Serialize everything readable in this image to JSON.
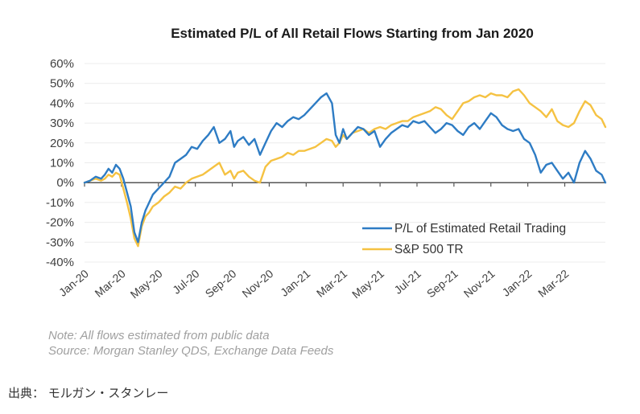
{
  "chart_data": {
    "type": "line",
    "title": "Estimated P/L of All Retail Flows Starting from Jan 2020",
    "xlabel": "",
    "ylabel": "",
    "ylim": [
      -40,
      60
    ],
    "yticks": [
      60,
      50,
      40,
      30,
      20,
      10,
      0,
      -10,
      -20,
      -30,
      -40
    ],
    "ytick_labels": [
      "60%",
      "50%",
      "40%",
      "30%",
      "20%",
      "10%",
      "0%",
      "-10%",
      "-20%",
      "-30%",
      "-40%"
    ],
    "xlim_months": [
      0,
      28.2
    ],
    "xtick_months": [
      0,
      2,
      4,
      6,
      8,
      10,
      12,
      14,
      16,
      18,
      20,
      22,
      24,
      26
    ],
    "xtick_labels": [
      "Jan-20",
      "Mar-20",
      "May-20",
      "Jul-20",
      "Sep-20",
      "Nov-20",
      "Jan-21",
      "Mar-21",
      "May-21",
      "Jul-21",
      "Sep-21",
      "Nov-21",
      "Jan-22",
      "Mar-22"
    ],
    "grid": true,
    "legend_position": "bottom-right",
    "x_unit": "months since Jan 2020",
    "series": [
      {
        "name": "P/L of Estimated Retail Trading",
        "color": "#2e7cc4",
        "x": [
          0,
          0.3,
          0.6,
          0.9,
          1.1,
          1.3,
          1.5,
          1.7,
          1.9,
          2.1,
          2.3,
          2.5,
          2.7,
          2.9,
          3.1,
          3.3,
          3.5,
          3.7,
          4.0,
          4.3,
          4.6,
          4.9,
          5.2,
          5.5,
          5.8,
          6.1,
          6.4,
          6.7,
          7.0,
          7.3,
          7.6,
          7.9,
          8.1,
          8.3,
          8.6,
          8.9,
          9.2,
          9.5,
          9.8,
          10.1,
          10.4,
          10.7,
          11.0,
          11.3,
          11.6,
          11.9,
          12.2,
          12.5,
          12.8,
          13.1,
          13.4,
          13.6,
          13.8,
          14.0,
          14.2,
          14.5,
          14.8,
          15.1,
          15.4,
          15.7,
          16.0,
          16.3,
          16.6,
          16.9,
          17.2,
          17.5,
          17.8,
          18.1,
          18.4,
          18.7,
          19.0,
          19.3,
          19.6,
          19.9,
          20.2,
          20.5,
          20.8,
          21.1,
          21.4,
          21.7,
          22.0,
          22.3,
          22.6,
          22.9,
          23.2,
          23.5,
          23.8,
          24.1,
          24.4,
          24.7,
          25.0,
          25.3,
          25.6,
          25.9,
          26.2,
          26.5,
          26.8,
          27.1,
          27.4,
          27.7,
          28.0,
          28.2
        ],
        "values": [
          0,
          1,
          3,
          2,
          4,
          7,
          5,
          9,
          7,
          2,
          -5,
          -12,
          -25,
          -30,
          -20,
          -14,
          -10,
          -6,
          -3,
          0,
          3,
          10,
          12,
          14,
          18,
          17,
          21,
          24,
          28,
          20,
          22,
          26,
          18,
          21,
          23,
          19,
          22,
          14,
          20,
          26,
          30,
          28,
          31,
          33,
          32,
          34,
          37,
          40,
          43,
          45,
          40,
          24,
          20,
          27,
          22,
          25,
          28,
          27,
          24,
          26,
          18,
          22,
          25,
          27,
          29,
          28,
          31,
          30,
          31,
          28,
          25,
          27,
          30,
          29,
          26,
          24,
          28,
          30,
          27,
          31,
          35,
          33,
          29,
          27,
          26,
          27,
          22,
          20,
          14,
          5,
          9,
          10,
          6,
          2,
          5,
          0,
          10,
          16,
          12,
          6,
          4,
          0
        ]
      },
      {
        "name": "S&P 500 TR",
        "color": "#f5c242",
        "x": [
          0,
          0.3,
          0.6,
          0.9,
          1.1,
          1.3,
          1.5,
          1.7,
          1.9,
          2.1,
          2.3,
          2.5,
          2.7,
          2.9,
          3.1,
          3.3,
          3.5,
          3.7,
          4.0,
          4.3,
          4.6,
          4.9,
          5.2,
          5.5,
          5.8,
          6.1,
          6.4,
          6.7,
          7.0,
          7.3,
          7.6,
          7.9,
          8.1,
          8.3,
          8.6,
          8.9,
          9.2,
          9.5,
          9.8,
          10.1,
          10.4,
          10.7,
          11.0,
          11.3,
          11.6,
          11.9,
          12.2,
          12.5,
          12.8,
          13.1,
          13.4,
          13.6,
          13.8,
          14.0,
          14.2,
          14.5,
          14.8,
          15.1,
          15.4,
          15.7,
          16.0,
          16.3,
          16.6,
          16.9,
          17.2,
          17.5,
          17.8,
          18.1,
          18.4,
          18.7,
          19.0,
          19.3,
          19.6,
          19.9,
          20.2,
          20.5,
          20.8,
          21.1,
          21.4,
          21.7,
          22.0,
          22.3,
          22.6,
          22.9,
          23.2,
          23.5,
          23.8,
          24.1,
          24.4,
          24.7,
          25.0,
          25.3,
          25.6,
          25.9,
          26.2,
          26.5,
          26.8,
          27.1,
          27.4,
          27.7,
          28.0,
          28.2
        ],
        "values": [
          0,
          1,
          2,
          1,
          2,
          4,
          3,
          5,
          4,
          -3,
          -10,
          -18,
          -28,
          -32,
          -22,
          -17,
          -15,
          -12,
          -10,
          -7,
          -5,
          -2,
          -3,
          0,
          2,
          3,
          4,
          6,
          8,
          10,
          4,
          6,
          2,
          5,
          6,
          3,
          1,
          0,
          8,
          11,
          12,
          13,
          15,
          14,
          16,
          16,
          17,
          18,
          20,
          22,
          21,
          18,
          20,
          24,
          22,
          25,
          26,
          27,
          25,
          27,
          28,
          27,
          29,
          30,
          31,
          31,
          33,
          34,
          35,
          36,
          38,
          37,
          34,
          32,
          36,
          40,
          41,
          43,
          44,
          43,
          45,
          44,
          44,
          43,
          46,
          47,
          44,
          40,
          38,
          36,
          33,
          37,
          31,
          29,
          28,
          30,
          36,
          41,
          39,
          34,
          32,
          28
        ]
      }
    ]
  },
  "notes": {
    "line1": "Note:  All flows estimated from public data",
    "line2": "Source: Morgan Stanley QDS, Exchange Data Feeds"
  },
  "caption": "出典： モルガン・スタンレー"
}
